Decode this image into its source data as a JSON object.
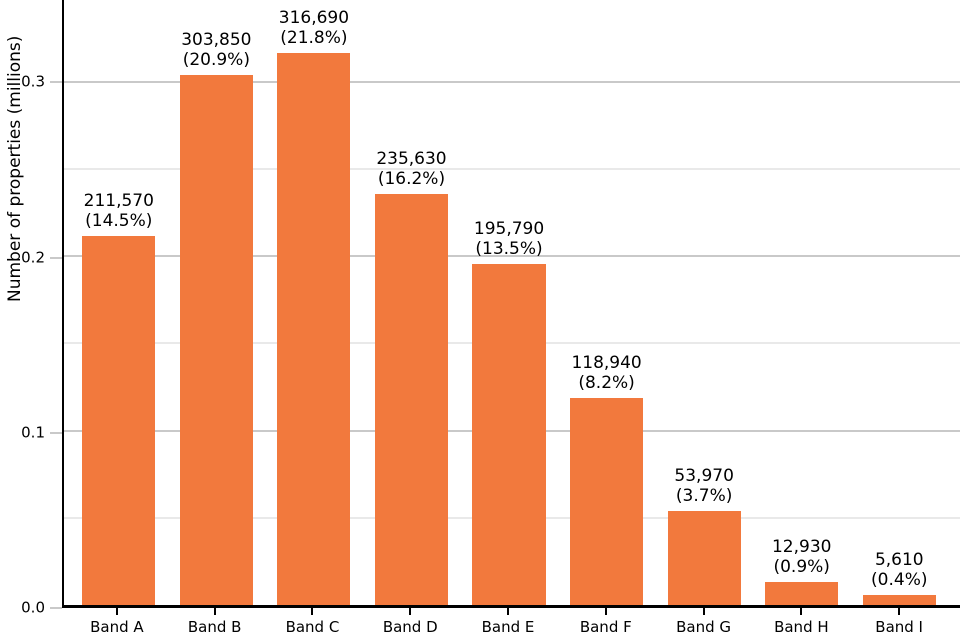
{
  "chart_data": {
    "type": "bar",
    "title": "",
    "xlabel": "",
    "ylabel": "Number of properties (millions)",
    "categories": [
      "Band A",
      "Band B",
      "Band C",
      "Band D",
      "Band E",
      "Band F",
      "Band G",
      "Band H",
      "Band I"
    ],
    "values": [
      211570,
      303850,
      316690,
      235630,
      195790,
      118940,
      53970,
      12930,
      5610
    ],
    "values_millions": [
      0.21157,
      0.30385,
      0.31669,
      0.23563,
      0.19579,
      0.11894,
      0.05397,
      0.01293,
      0.00561
    ],
    "percentages": [
      14.5,
      20.9,
      21.8,
      16.2,
      13.5,
      8.2,
      3.7,
      0.9,
      0.4
    ],
    "bar_labels": [
      {
        "count": "211,570",
        "percent": "(14.5%)"
      },
      {
        "count": "303,850",
        "percent": "(20.9%)"
      },
      {
        "count": "316,690",
        "percent": "(21.8%)"
      },
      {
        "count": "235,630",
        "percent": "(16.2%)"
      },
      {
        "count": "195,790",
        "percent": "(13.5%)"
      },
      {
        "count": "118,940",
        "percent": "(8.2%)"
      },
      {
        "count": "53,970",
        "percent": "(3.7%)"
      },
      {
        "count": "12,930",
        "percent": "(0.9%)"
      },
      {
        "count": "5,610",
        "percent": "(0.4%)"
      }
    ],
    "ylim": [
      0,
      0.347
    ],
    "yticks": [
      {
        "value": 0.0,
        "label": "0.0"
      },
      {
        "value": 0.1,
        "label": "0.1"
      },
      {
        "value": 0.2,
        "label": "0.2"
      },
      {
        "value": 0.3,
        "label": "0.3"
      }
    ],
    "minor_gridlines": [
      0.05,
      0.15,
      0.25
    ],
    "grid": true,
    "legend": "none",
    "colors": {
      "bar": "#f2793d",
      "grid_major": "#c9c9c9",
      "grid_minor": "#e9e9e9",
      "axis": "#000000",
      "text": "#000000",
      "background": "#ffffff"
    }
  }
}
